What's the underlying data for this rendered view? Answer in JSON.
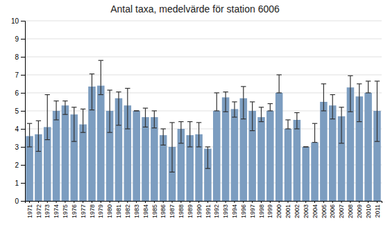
{
  "chart_data": {
    "type": "bar",
    "title": "Antal taxa, medelvärde för station 6006",
    "categories": [
      "1971",
      "1972",
      "1973",
      "1974",
      "1975",
      "1976",
      "1977",
      "1978",
      "1979",
      "1980",
      "1981",
      "1982",
      "1983",
      "1984",
      "1985",
      "1986",
      "1987",
      "1988",
      "1989",
      "1990",
      "1991",
      "1992",
      "1993",
      "1994",
      "1996",
      "1997",
      "1998",
      "1999",
      "2000",
      "2001",
      "2002",
      "2003",
      "2004",
      "2005",
      "2006",
      "2007",
      "2008",
      "2009",
      "2010",
      "2011"
    ],
    "values": [
      3.6,
      3.7,
      4.1,
      5.0,
      5.3,
      4.8,
      4.25,
      6.35,
      6.4,
      5.0,
      5.7,
      5.3,
      5.0,
      4.65,
      4.65,
      3.65,
      3.0,
      4.0,
      3.65,
      3.7,
      2.9,
      5.0,
      5.75,
      5.1,
      5.7,
      5.0,
      4.65,
      5.0,
      6.0,
      4.0,
      4.5,
      3.0,
      3.25,
      5.5,
      5.3,
      4.7,
      6.3,
      5.8,
      6.0,
      5.0
    ],
    "err_upper": [
      0.7,
      0.75,
      1.8,
      0.55,
      0.25,
      0.4,
      0.85,
      0.7,
      1.4,
      1.15,
      0.35,
      0.95,
      0.0,
      0.5,
      0.35,
      0.35,
      1.35,
      0.4,
      0.75,
      0.65,
      0.1,
      1.0,
      0.3,
      0.4,
      0.65,
      0.5,
      0.55,
      0.4,
      1.0,
      0.5,
      0.4,
      0.0,
      1.05,
      1.0,
      0.6,
      0.5,
      0.65,
      0.7,
      0.65,
      1.65
    ],
    "err_lower": [
      0.6,
      0.95,
      0.7,
      0.5,
      0.5,
      1.5,
      0.45,
      1.3,
      0.5,
      1.2,
      1.5,
      1.3,
      0.0,
      0.55,
      0.6,
      0.55,
      1.4,
      0.8,
      0.65,
      0.7,
      1.1,
      0.0,
      0.8,
      0.45,
      1.15,
      1.1,
      0.25,
      0.0,
      0.0,
      0.0,
      0.5,
      0.0,
      0.0,
      0.5,
      0.75,
      1.5,
      1.35,
      1.4,
      0.0,
      1.7
    ],
    "color": "#7c9dc0",
    "ylim": [
      0,
      10
    ],
    "yticks": [
      0,
      1,
      2,
      3,
      4,
      5,
      6,
      7,
      8,
      9,
      10
    ],
    "grid": true
  }
}
